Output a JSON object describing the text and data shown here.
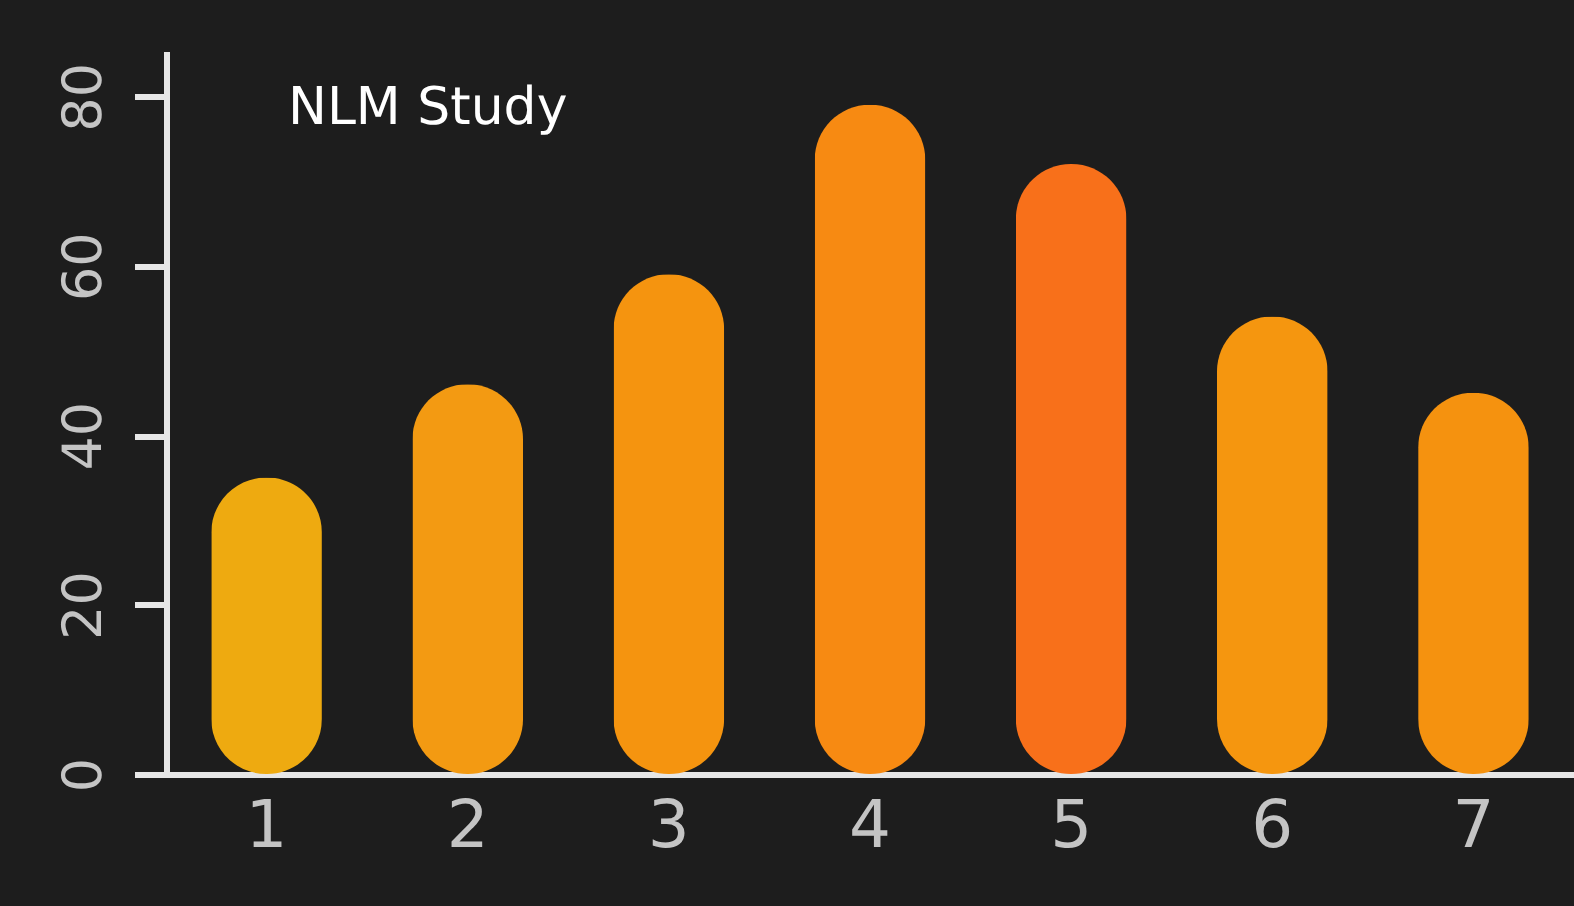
{
  "chart_data": {
    "type": "bar",
    "title": "NLM Study",
    "categories": [
      "1",
      "2",
      "3",
      "4",
      "5",
      "6",
      "7"
    ],
    "values": [
      35,
      46,
      59,
      79,
      72,
      54,
      45
    ],
    "colors": [
      "#eeaa10",
      "#f39a12",
      "#f5940f",
      "#f78a12",
      "#f8701a",
      "#f5960f",
      "#f5920f"
    ],
    "ylim": [
      0,
      85
    ],
    "yticks": [
      0,
      20,
      40,
      60,
      80
    ],
    "grid": false
  }
}
